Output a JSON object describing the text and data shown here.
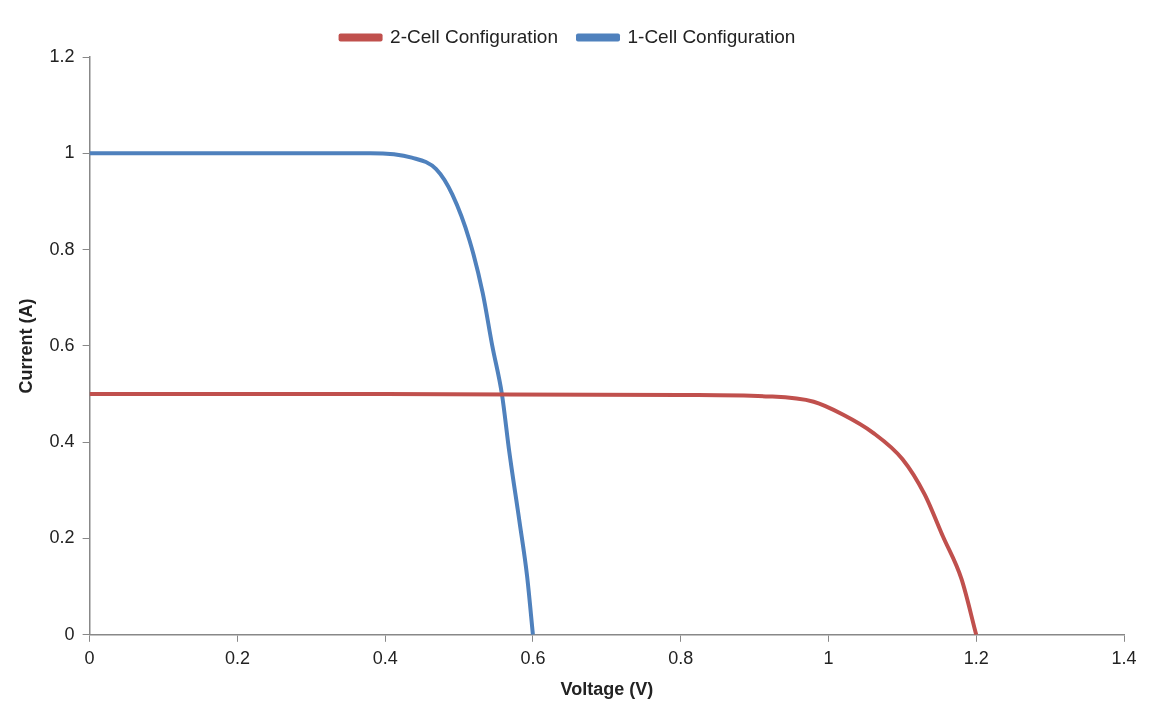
{
  "chart_data": {
    "type": "line",
    "xlabel": "Voltage (V)",
    "ylabel": "Current (A)",
    "xlim": [
      0,
      1.4
    ],
    "xticks": [
      0,
      0.2,
      0.4,
      0.6,
      0.8,
      1,
      1.2,
      1.4
    ],
    "ylim": [
      0,
      1.2
    ],
    "yticks": [
      0,
      0.2,
      0.4,
      0.6,
      0.8,
      1,
      1.2
    ],
    "grid": false,
    "legend": "top",
    "marker": "none",
    "line_style": "solid",
    "series": [
      {
        "name": "2-Cell Configuration",
        "color": "#c0504d",
        "x": [
          0,
          0.4,
          0.8,
          0.92,
          0.98,
          1.02,
          1.06,
          1.1,
          1.13,
          1.155,
          1.18,
          1.2
        ],
        "values": [
          0.5,
          0.5,
          0.498,
          0.495,
          0.484,
          0.457,
          0.42,
          0.365,
          0.292,
          0.204,
          0.116,
          0
        ]
      },
      {
        "name": "1-Cell Configuration",
        "color": "#4f81bd",
        "x": [
          0,
          0.3,
          0.38,
          0.436,
          0.469,
          0.491,
          0.514,
          0.532,
          0.545,
          0.558,
          0.568,
          0.582,
          0.592,
          0.6
        ],
        "values": [
          1,
          1,
          1,
          0.991,
          0.967,
          0.914,
          0.82,
          0.71,
          0.6,
          0.5,
          0.38,
          0.233,
          0.123,
          0
        ]
      }
    ]
  }
}
